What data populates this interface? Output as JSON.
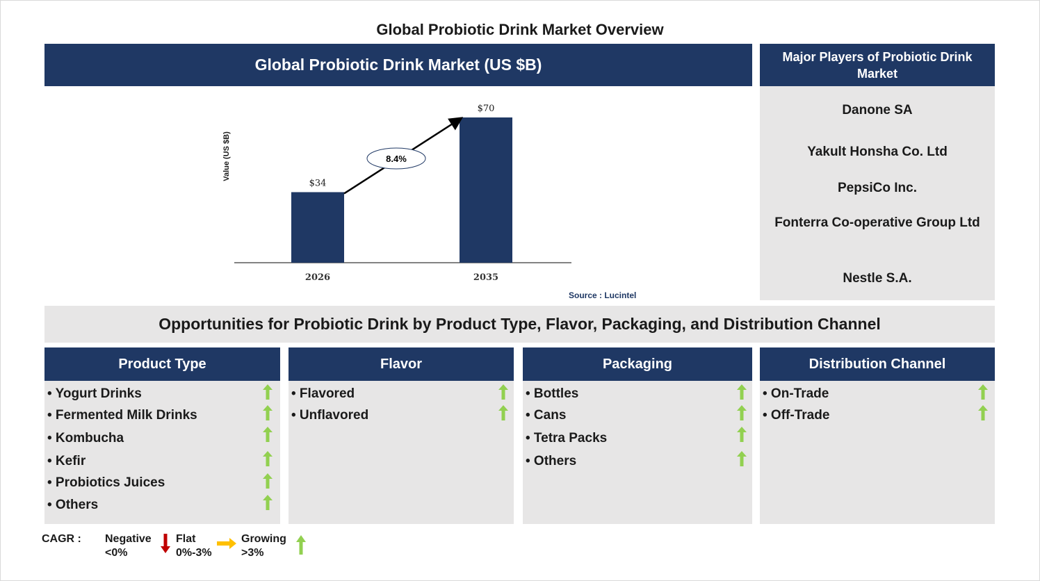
{
  "page_title": "Global Probiotic Drink Market Overview",
  "chart_header": "Global Probiotic Drink Market (US $B)",
  "players": {
    "header": "Major Players of Probiotic Drink Market",
    "items": [
      "Danone SA",
      "Yakult Honsha Co. Ltd",
      "PepsiCo Inc.",
      "Fonterra Co-operative Group Ltd",
      "Nestle S.A."
    ]
  },
  "source": "Source : Lucintel",
  "opportunities_title": "Opportunities for Probiotic Drink by Product Type, Flavor, Packaging, and Distribution Channel",
  "segments": [
    {
      "title": "Product Type",
      "items": [
        "• Yogurt Drinks",
        "• Fermented Milk Drinks",
        "• Kombucha",
        "• Kefir",
        "• Probiotics Juices",
        "• Others"
      ]
    },
    {
      "title": "Flavor",
      "items": [
        "• Flavored",
        "• Unflavored"
      ]
    },
    {
      "title": "Packaging",
      "items": [
        "• Bottles",
        "• Cans",
        "• Tetra Packs",
        "• Others"
      ]
    },
    {
      "title": "Distribution Channel",
      "items": [
        "• On-Trade",
        "• Off-Trade"
      ]
    }
  ],
  "legend": {
    "cagr_label": "CAGR  :",
    "negative": "Negative\n<0%",
    "flat": "Flat\n0%-3%",
    "growing": "Growing\n>3%"
  },
  "colors": {
    "navy": "#1f3864",
    "panel_grey": "#e7e6e6",
    "growth_green": "#92d050",
    "negative_red": "#c00000",
    "flat_orange": "#ffc000"
  },
  "chart_data": {
    "type": "bar",
    "categories": [
      "2026",
      "2035"
    ],
    "values": [
      34,
      70
    ],
    "value_labels": [
      "$34",
      "$70"
    ],
    "ylabel": "Value (US $B)",
    "cagr_annotation": "8.4%",
    "ylim": [
      0,
      70
    ]
  }
}
